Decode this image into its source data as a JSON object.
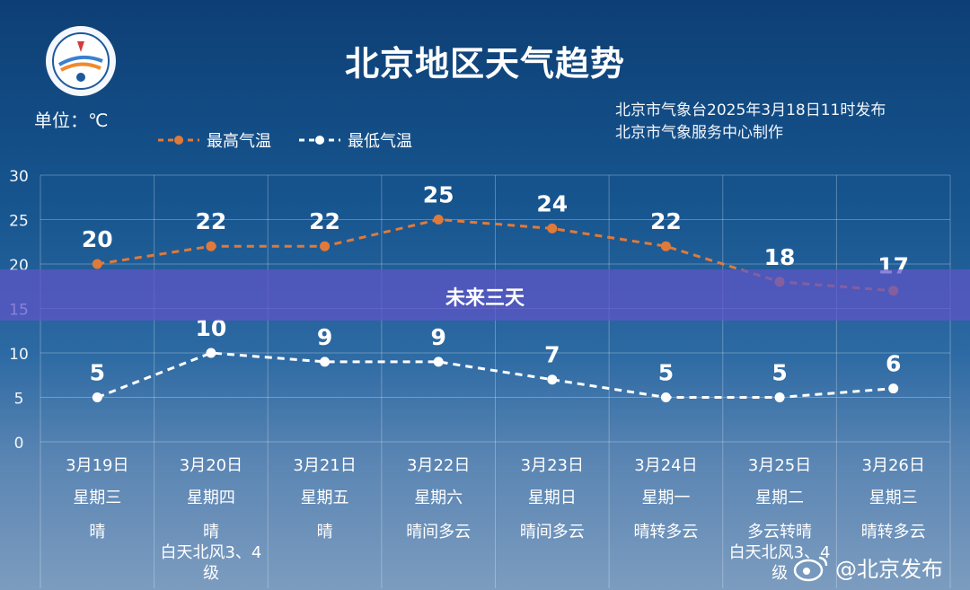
{
  "header": {
    "title": "北京地区天气趋势",
    "unit": "单位：℃",
    "issuer_line1": "北京市气象台2025年3月18日11时发布",
    "issuer_line2": "北京市气象服务中心制作"
  },
  "legend": {
    "high": "最高气温",
    "low": "最低气温"
  },
  "banner": {
    "text": "未来三天"
  },
  "watermark": {
    "text": "@北京发布"
  },
  "colors": {
    "high_line": "#e07a3a",
    "low_line": "#ffffff",
    "banner": "#5f55c8"
  },
  "chart_data": {
    "type": "line",
    "title": "北京地区天气趋势",
    "ylim": [
      0,
      30
    ],
    "yticks": [
      0,
      5,
      10,
      15,
      20,
      25,
      30
    ],
    "grid": true,
    "categories": [
      "3月19日",
      "3月20日",
      "3月21日",
      "3月22日",
      "3月23日",
      "3月24日",
      "3月25日",
      "3月26日"
    ],
    "weekdays": [
      "星期三",
      "星期四",
      "星期五",
      "星期六",
      "星期日",
      "星期一",
      "星期二",
      "星期三"
    ],
    "weather": [
      [
        "晴"
      ],
      [
        "晴",
        "白天北风3、4",
        "级"
      ],
      [
        "晴"
      ],
      [
        "晴间多云"
      ],
      [
        "晴间多云"
      ],
      [
        "晴转多云"
      ],
      [
        "多云转晴",
        "白天北风3、4",
        "级"
      ],
      [
        "晴转多云"
      ]
    ],
    "series": [
      {
        "name": "最高气温",
        "values": [
          20,
          22,
          22,
          25,
          24,
          22,
          18,
          17
        ]
      },
      {
        "name": "最低气温",
        "values": [
          5,
          10,
          9,
          9,
          7,
          5,
          5,
          6
        ]
      }
    ]
  }
}
